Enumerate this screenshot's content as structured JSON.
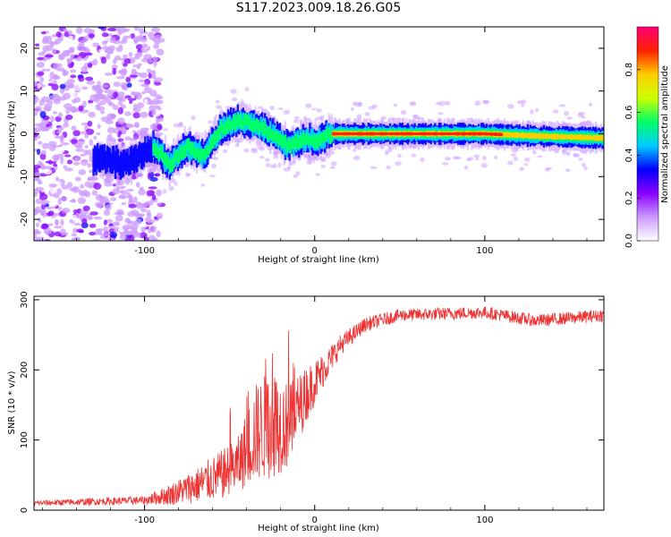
{
  "title": "S117.2023.009.18.26.G05",
  "chart_data": [
    {
      "type": "heatmap",
      "xlabel": "Height of straight line (km)",
      "ylabel": "Frequency (Hz)",
      "xlim": [
        -165,
        170
      ],
      "ylim": [
        -25,
        25
      ],
      "xticks": [
        -100,
        0,
        100
      ],
      "yticks": [
        -20,
        -10,
        0,
        10,
        20
      ],
      "colorbar": {
        "label": "Normalized spectral amplitude",
        "range": [
          0,
          1
        ],
        "ticks": [
          "0.0",
          "0.2",
          "0.4",
          "0.6",
          "0.8"
        ],
        "tick_values": [
          0,
          0.2,
          0.4,
          0.6,
          0.8
        ],
        "colors": [
          "#ffffff",
          "#cc99ff",
          "#8800ff",
          "#0000ff",
          "#00ccff",
          "#00ff66",
          "#ccff00",
          "#ffcc00",
          "#ff2200",
          "#ff0077"
        ]
      },
      "ridge": [
        {
          "x": -125,
          "f": -6
        },
        {
          "x": -110,
          "f": -7
        },
        {
          "x": -95,
          "f": -3
        },
        {
          "x": -85,
          "f": -7
        },
        {
          "x": -75,
          "f": -3
        },
        {
          "x": -65,
          "f": -5
        },
        {
          "x": -55,
          "f": 1
        },
        {
          "x": -45,
          "f": 3
        },
        {
          "x": -35,
          "f": 2
        },
        {
          "x": -25,
          "f": 0
        },
        {
          "x": -15,
          "f": -3
        },
        {
          "x": -5,
          "f": -1
        },
        {
          "x": 0,
          "f": -2
        },
        {
          "x": 10,
          "f": 0
        },
        {
          "x": 50,
          "f": 0
        },
        {
          "x": 100,
          "f": 0
        },
        {
          "x": 130,
          "f": -0.5
        },
        {
          "x": 170,
          "f": -1
        }
      ]
    },
    {
      "type": "line",
      "xlabel": "Height of straight line (km)",
      "ylabel": "SNR (10 * v/v)",
      "xlim": [
        -165,
        170
      ],
      "ylim": [
        0,
        305
      ],
      "xticks": [
        -100,
        0,
        100
      ],
      "yticks": [
        0,
        100,
        200,
        300
      ],
      "color": "#ee3333",
      "envelope": [
        {
          "x": -165,
          "base": 10,
          "amp": 4
        },
        {
          "x": -100,
          "base": 14,
          "amp": 6
        },
        {
          "x": -85,
          "base": 22,
          "amp": 15
        },
        {
          "x": -70,
          "base": 35,
          "amp": 25
        },
        {
          "x": -55,
          "base": 50,
          "amp": 35
        },
        {
          "x": -45,
          "base": 65,
          "amp": 40
        },
        {
          "x": -35,
          "base": 110,
          "amp": 70
        },
        {
          "x": -25,
          "base": 125,
          "amp": 80
        },
        {
          "x": -15,
          "base": 120,
          "amp": 60
        },
        {
          "x": -5,
          "base": 165,
          "amp": 40
        },
        {
          "x": 5,
          "base": 200,
          "amp": 25
        },
        {
          "x": 15,
          "base": 235,
          "amp": 15
        },
        {
          "x": 30,
          "base": 265,
          "amp": 10
        },
        {
          "x": 50,
          "base": 278,
          "amp": 9
        },
        {
          "x": 100,
          "base": 282,
          "amp": 9
        },
        {
          "x": 130,
          "base": 270,
          "amp": 9
        },
        {
          "x": 170,
          "base": 278,
          "amp": 9
        }
      ]
    }
  ]
}
